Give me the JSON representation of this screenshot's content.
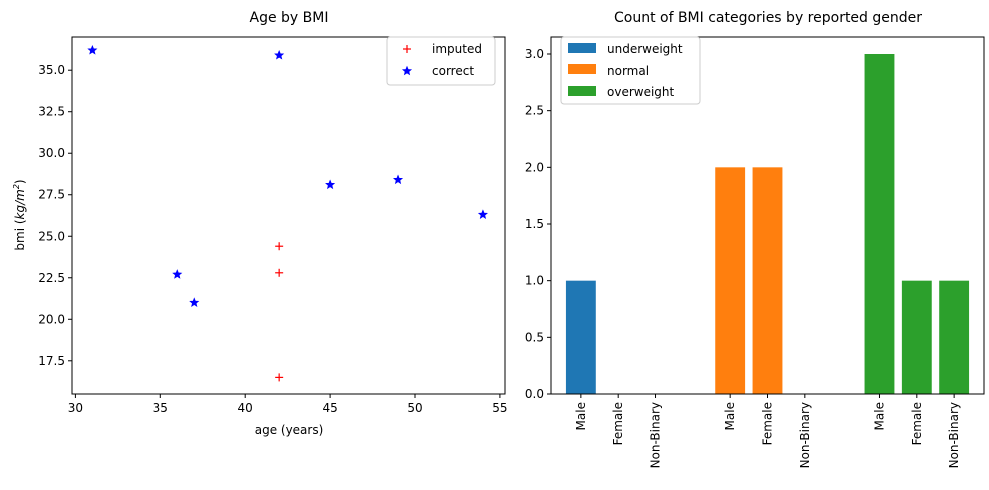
{
  "chart_data": [
    {
      "type": "scatter",
      "title": "Age by BMI",
      "xlabel": "age (years)",
      "ylabel_prefix": "bmi (",
      "ylabel_unit": "kg/m",
      "ylabel_exp": "2",
      "ylabel_suffix": ")",
      "xlim": [
        29.8,
        55.3
      ],
      "ylim": [
        15.5,
        37.0
      ],
      "xticks": [
        30,
        35,
        40,
        45,
        50,
        55
      ],
      "yticks": [
        17.5,
        20.0,
        22.5,
        25.0,
        27.5,
        30.0,
        32.5,
        35.0
      ],
      "legend_position": "top-right",
      "series": [
        {
          "name": "imputed",
          "marker": "plus",
          "color": "#ff0000",
          "points": [
            [
              42,
              24.4
            ],
            [
              42,
              22.8
            ],
            [
              42,
              16.5
            ]
          ]
        },
        {
          "name": "correct",
          "marker": "star",
          "color": "#0000ff",
          "points": [
            [
              31,
              36.2
            ],
            [
              42,
              35.9
            ],
            [
              45,
              28.1
            ],
            [
              49,
              28.4
            ],
            [
              54,
              26.3
            ],
            [
              36,
              22.7
            ],
            [
              37,
              21.0
            ]
          ]
        }
      ]
    },
    {
      "type": "bar",
      "title": "Count of BMI categories by reported gender",
      "ylim": [
        0,
        3.15
      ],
      "yticks": [
        0.0,
        0.5,
        1.0,
        1.5,
        2.0,
        2.5,
        3.0
      ],
      "legend_position": "top-left",
      "categories": [
        "Male",
        "Female",
        "Non-Binary"
      ],
      "series": [
        {
          "name": "underweight",
          "color": "#1f77b4",
          "values": [
            1,
            0,
            0
          ]
        },
        {
          "name": "normal",
          "color": "#ff7f0e",
          "values": [
            2,
            2,
            0
          ]
        },
        {
          "name": "overweight",
          "color": "#2ca02c",
          "values": [
            3,
            1,
            1
          ]
        }
      ]
    }
  ]
}
